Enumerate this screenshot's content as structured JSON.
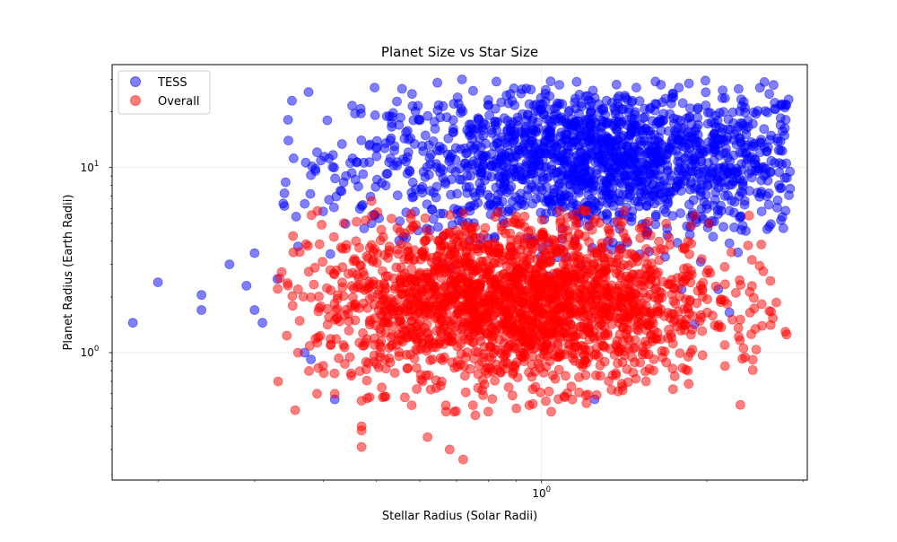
{
  "chart_data": {
    "type": "scatter",
    "title": "Planet Size vs Star Size",
    "xlabel": "Stellar Radius (Solar Radii)",
    "ylabel": "Planet Radius (Earth Radii)",
    "xscale": "log",
    "yscale": "log",
    "xlim": [
      0.165,
      3.05
    ],
    "ylim": [
      0.205,
      36
    ],
    "x_ticks": [
      {
        "value": 1,
        "label": "10^0"
      }
    ],
    "y_ticks": [
      {
        "value": 1,
        "label": "10^0"
      },
      {
        "value": 10,
        "label": "10^1"
      }
    ],
    "grid": true,
    "legend_position": "top-left",
    "series": [
      {
        "name": "TESS",
        "color": "#0000ff",
        "alpha": 0.5,
        "distribution": {
          "x_median": 1.3,
          "x_log_sigma": 0.22,
          "y_median": 11.0,
          "y_log_sigma": 0.2
        },
        "points": [
          [
            0.18,
            1.45
          ],
          [
            0.2,
            2.4
          ],
          [
            0.24,
            1.7
          ],
          [
            0.24,
            2.05
          ],
          [
            0.27,
            3.0
          ],
          [
            0.3,
            1.7
          ],
          [
            0.29,
            2.3
          ],
          [
            0.31,
            1.45
          ],
          [
            0.3,
            3.45
          ],
          [
            0.33,
            2.5
          ],
          [
            0.34,
            6.2
          ],
          [
            0.36,
            3.75
          ],
          [
            0.37,
            1.0
          ],
          [
            0.38,
            0.92
          ],
          [
            0.38,
            9.1
          ],
          [
            0.39,
            12.1
          ],
          [
            0.4,
            5.8
          ],
          [
            0.41,
            6.7
          ],
          [
            0.41,
            11.2
          ],
          [
            0.42,
            0.56
          ],
          [
            0.43,
            7.5
          ],
          [
            0.44,
            9.0
          ],
          [
            0.46,
            10.7
          ],
          [
            0.47,
            6.2
          ],
          [
            0.49,
            5.0
          ],
          [
            0.5,
            12.7
          ],
          [
            0.52,
            8.0
          ],
          [
            0.53,
            14.0
          ],
          [
            0.55,
            17.0
          ],
          [
            0.57,
            15.8
          ],
          [
            0.6,
            18.0
          ],
          [
            0.62,
            19.0
          ],
          [
            1.25,
            0.56
          ],
          [
            1.65,
            28.0
          ],
          [
            1.8,
            2.2
          ],
          [
            1.9,
            1.42
          ],
          [
            2.1,
            2.2
          ],
          [
            2.2,
            1.65
          ],
          [
            2.6,
            4.8
          ],
          [
            2.8,
            8.8
          ],
          [
            2.75,
            22.0
          ],
          [
            2.6,
            25.0
          ],
          [
            2.5,
            27.0
          ],
          [
            2.0,
            6.0
          ],
          [
            1.95,
            3.1
          ],
          [
            2.2,
            3.9
          ]
        ]
      },
      {
        "name": "Overall",
        "color": "#ff0000",
        "alpha": 0.5,
        "distribution": {
          "x_median": 0.9,
          "x_log_sigma": 0.18,
          "y_median": 1.9,
          "y_log_sigma": 0.22
        },
        "points": [
          [
            0.47,
            0.4
          ],
          [
            0.47,
            0.38
          ],
          [
            0.47,
            0.31
          ],
          [
            0.47,
            0.55
          ],
          [
            0.42,
            0.6
          ],
          [
            0.39,
            0.6
          ],
          [
            0.68,
            0.3
          ],
          [
            0.72,
            0.265
          ],
          [
            0.67,
            0.48
          ],
          [
            0.8,
            0.48
          ],
          [
            0.9,
            0.5
          ],
          [
            0.95,
            0.52
          ],
          [
            1.28,
            0.75
          ],
          [
            1.55,
            0.7
          ],
          [
            1.6,
            0.8
          ],
          [
            1.85,
            0.95
          ],
          [
            1.95,
            2.3
          ],
          [
            1.9,
            5.5
          ],
          [
            1.85,
            4.0
          ],
          [
            0.49,
            6.6
          ],
          [
            0.36,
            2.2
          ],
          [
            0.36,
            1.0
          ],
          [
            0.4,
            0.85
          ],
          [
            0.45,
            0.75
          ],
          [
            0.58,
            0.52
          ],
          [
            1.1,
            0.58
          ],
          [
            1.4,
            0.68
          ],
          [
            1.7,
            1.2
          ],
          [
            0.62,
            0.35
          ],
          [
            0.75,
            0.52
          ]
        ]
      }
    ]
  }
}
